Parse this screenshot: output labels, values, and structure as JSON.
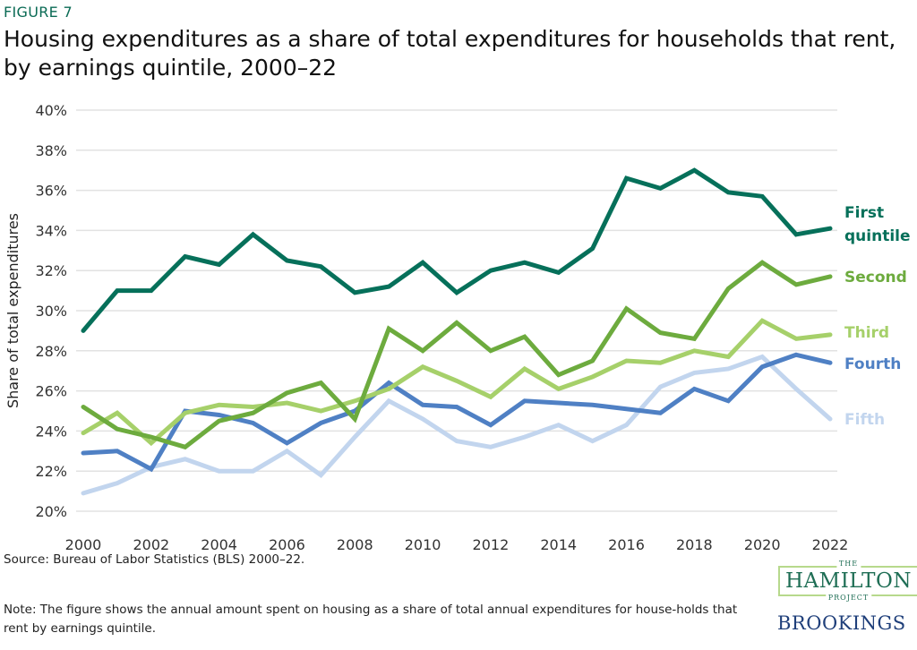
{
  "figure_label": "FIGURE 7",
  "title": "Housing expenditures as a share of total expenditures for households that rent, by earnings quintile, 2000–22",
  "source": "Source: Bureau of Labor Statistics (BLS) 2000–22.",
  "note": "Note: The figure shows the annual amount spent on housing as a share of total annual expenditures for house-holds that rent by earnings quintile.",
  "logos": {
    "hamilton_top": "THE",
    "hamilton_main": "HAMILTON",
    "hamilton_bottom": "PROJECT",
    "brookings": "BROOKINGS"
  },
  "chart_data": {
    "type": "line",
    "title": "",
    "xlabel": "",
    "ylabel": "Share of total expenditures",
    "xlim": [
      2000,
      2022
    ],
    "ylim": [
      20,
      40
    ],
    "grid": true,
    "legend_placement": "right end labels",
    "x": [
      2000,
      2001,
      2002,
      2003,
      2004,
      2005,
      2006,
      2007,
      2008,
      2009,
      2010,
      2011,
      2012,
      2013,
      2014,
      2015,
      2016,
      2017,
      2018,
      2019,
      2020,
      2021,
      2022
    ],
    "x_ticks": [
      "2000",
      "2002",
      "2004",
      "2006",
      "2008",
      "2010",
      "2012",
      "2014",
      "2016",
      "2018",
      "2020",
      "2022"
    ],
    "y_ticks": [
      "20%",
      "22%",
      "24%",
      "26%",
      "28%",
      "30%",
      "32%",
      "34%",
      "36%",
      "38%",
      "40%"
    ],
    "series": [
      {
        "name": "First quintile",
        "label_lines": [
          "First",
          "quintile"
        ],
        "color": "#06705a",
        "values": [
          29.0,
          31.0,
          31.0,
          32.7,
          32.3,
          33.8,
          32.5,
          32.2,
          30.9,
          31.2,
          32.4,
          30.9,
          32.0,
          32.4,
          31.9,
          33.1,
          36.6,
          36.1,
          37.0,
          35.9,
          35.7,
          33.8,
          34.1
        ]
      },
      {
        "name": "Second",
        "label_lines": [
          "Second"
        ],
        "color": "#6dab3e",
        "values": [
          25.2,
          24.1,
          23.7,
          23.2,
          24.5,
          24.9,
          25.9,
          26.4,
          24.6,
          29.1,
          28.0,
          29.4,
          28.0,
          28.7,
          26.8,
          27.5,
          30.1,
          28.9,
          28.6,
          31.1,
          32.4,
          31.3,
          31.7
        ]
      },
      {
        "name": "Third",
        "label_lines": [
          "Third"
        ],
        "color": "#a6d06a",
        "values": [
          23.9,
          24.9,
          23.4,
          24.9,
          25.3,
          25.2,
          25.4,
          25.0,
          25.5,
          26.1,
          27.2,
          26.5,
          25.7,
          27.1,
          26.1,
          26.7,
          27.5,
          27.4,
          28.0,
          27.7,
          29.5,
          28.6,
          28.8
        ]
      },
      {
        "name": "Fourth",
        "label_lines": [
          "Fourth"
        ],
        "color": "#4f80c4",
        "values": [
          22.9,
          23.0,
          22.1,
          25.0,
          24.8,
          24.4,
          23.4,
          24.4,
          25.0,
          26.4,
          25.3,
          25.2,
          24.3,
          25.5,
          25.4,
          25.3,
          25.1,
          24.9,
          26.1,
          25.5,
          27.2,
          27.8,
          27.4
        ]
      },
      {
        "name": "Fifth",
        "label_lines": [
          "Fifth"
        ],
        "color": "#c2d5ee",
        "values": [
          20.9,
          21.4,
          22.2,
          22.6,
          22.0,
          22.0,
          23.0,
          21.8,
          23.7,
          25.5,
          24.6,
          23.5,
          23.2,
          23.7,
          24.3,
          23.5,
          24.3,
          26.2,
          26.9,
          27.1,
          27.7,
          26.1,
          24.6
        ]
      }
    ]
  }
}
